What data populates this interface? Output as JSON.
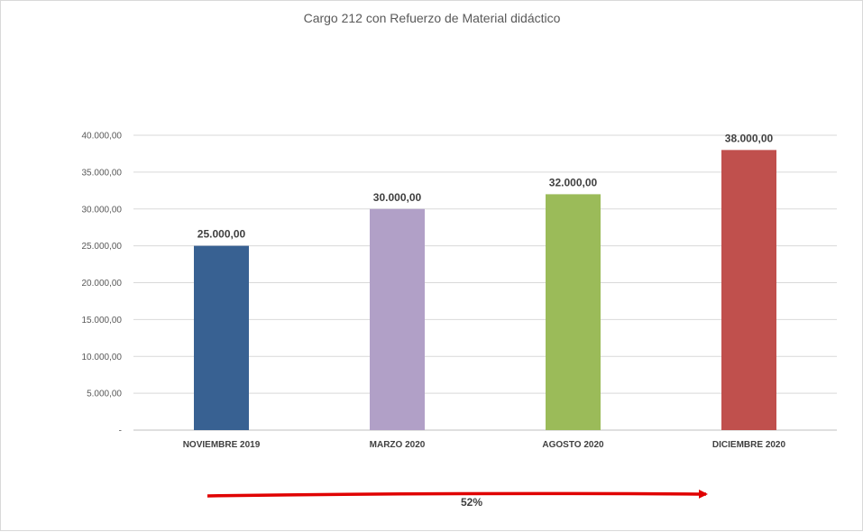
{
  "chart_data": {
    "type": "bar",
    "title": "Cargo 212 con Refuerzo de Material didáctico",
    "categories": [
      "NOVIEMBRE 2019",
      "MARZO 2020",
      "AGOSTO 2020",
      "DICIEMBRE 2020"
    ],
    "values": [
      25000,
      30000,
      32000,
      38000
    ],
    "data_labels": [
      "25.000,00",
      "30.000,00",
      "32.000,00",
      "38.000,00"
    ],
    "bar_colors": [
      "#386192",
      "#b1a0c7",
      "#9bbb59",
      "#c0504d"
    ],
    "ylim": [
      0,
      40000
    ],
    "y_ticks": [
      {
        "value": 0,
        "label": "-"
      },
      {
        "value": 5000,
        "label": "5.000,00"
      },
      {
        "value": 10000,
        "label": "10.000,00"
      },
      {
        "value": 15000,
        "label": "15.000,00"
      },
      {
        "value": 20000,
        "label": "20.000,00"
      },
      {
        "value": 25000,
        "label": "25.000,00"
      },
      {
        "value": 30000,
        "label": "30.000,00"
      },
      {
        "value": 35000,
        "label": "35.000,00"
      },
      {
        "value": 40000,
        "label": "40.000,00"
      }
    ],
    "grid": true,
    "legend": "none",
    "xlabel": "",
    "ylabel": "",
    "annotation": {
      "text": "52%",
      "arrow_color": "#e00000"
    }
  }
}
